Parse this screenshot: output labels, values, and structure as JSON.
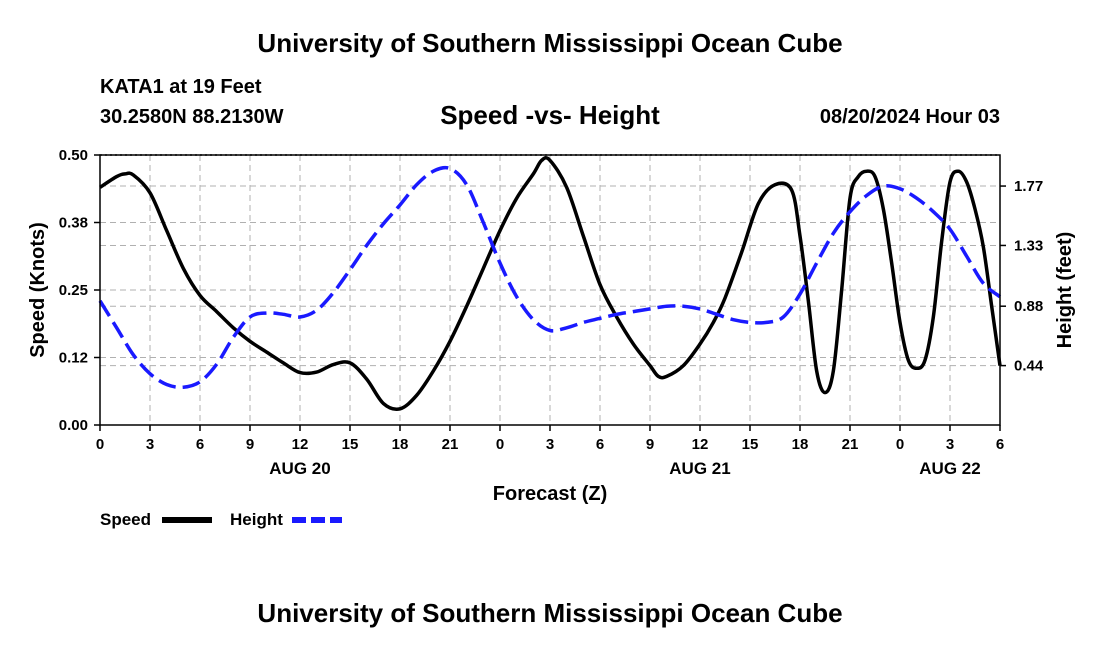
{
  "header": {
    "title": "University of Southern Mississippi Ocean Cube",
    "station": "KATA1 at 19 Feet",
    "coords": "30.2580N  88.2130W",
    "datetime": "08/20/2024 Hour 03",
    "footer_title": "University of Southern Mississippi Ocean Cube"
  },
  "chart_data": {
    "type": "line",
    "title": "Speed -vs- Height",
    "xlabel": "Forecast (Z)",
    "ylabel": "Speed (Knots)",
    "y2label": "Height (feet)",
    "x_range": [
      0,
      54
    ],
    "x_ticks": [
      0,
      3,
      6,
      9,
      12,
      15,
      18,
      21,
      24,
      27,
      30,
      33,
      36,
      39,
      42,
      45,
      48,
      51,
      54
    ],
    "x_tick_labels": [
      "0",
      "3",
      "6",
      "9",
      "12",
      "15",
      "18",
      "21",
      "0",
      "3",
      "6",
      "9",
      "12",
      "15",
      "18",
      "21",
      "0",
      "3",
      "6"
    ],
    "date_labels": [
      {
        "label": "AUG 20",
        "x": 12
      },
      {
        "label": "AUG 21",
        "x": 36
      },
      {
        "label": "AUG 22",
        "x": 51
      }
    ],
    "ylim": [
      0,
      0.5
    ],
    "y_ticks": [
      0,
      0.125,
      0.25,
      0.375,
      0.5
    ],
    "y_tick_labels": [
      "0.00",
      "0.12",
      "0.25",
      "0.38",
      "0.50"
    ],
    "y2lim": [
      0,
      2.0
    ],
    "y2_ticks": [
      0.44,
      0.88,
      1.33,
      1.77
    ],
    "y2_tick_labels": [
      "0.44",
      "0.88",
      "1.33",
      "1.77"
    ],
    "grid": true,
    "legend": [
      {
        "name": "Speed",
        "color": "#000000",
        "dash": "solid"
      },
      {
        "name": "Height",
        "color": "#1a1aff",
        "dash": "dashed"
      }
    ],
    "series": [
      {
        "name": "Speed",
        "axis": "left",
        "color": "#000000",
        "x": [
          0,
          1,
          1.5,
          2,
          3,
          4,
          5,
          6,
          7,
          8,
          9,
          10,
          11,
          12,
          13,
          14,
          15,
          16,
          17,
          18,
          19,
          20,
          21,
          22,
          23,
          24,
          25,
          26,
          26.5,
          27,
          28,
          29,
          30,
          31,
          32,
          33,
          33.5,
          34,
          35,
          36,
          36.8,
          37.5,
          38.5,
          39.5,
          40.5,
          41.5,
          42,
          42.5,
          43,
          43.5,
          44,
          44.5,
          45,
          45.5,
          46,
          46.5,
          47,
          47.5,
          48,
          48.5,
          49,
          49.5,
          50,
          50.5,
          51,
          51.5,
          52,
          52.5,
          53,
          53.5,
          54
        ],
        "y": [
          0.44,
          0.46,
          0.465,
          0.463,
          0.43,
          0.36,
          0.29,
          0.24,
          0.21,
          0.18,
          0.155,
          0.135,
          0.115,
          0.097,
          0.098,
          0.112,
          0.115,
          0.085,
          0.04,
          0.03,
          0.055,
          0.1,
          0.155,
          0.22,
          0.29,
          0.36,
          0.42,
          0.465,
          0.49,
          0.49,
          0.44,
          0.35,
          0.26,
          0.2,
          0.15,
          0.11,
          0.09,
          0.09,
          0.11,
          0.15,
          0.19,
          0.235,
          0.32,
          0.41,
          0.445,
          0.435,
          0.35,
          0.23,
          0.1,
          0.06,
          0.1,
          0.25,
          0.42,
          0.46,
          0.47,
          0.46,
          0.4,
          0.3,
          0.19,
          0.12,
          0.105,
          0.12,
          0.2,
          0.34,
          0.45,
          0.47,
          0.45,
          0.4,
          0.33,
          0.22,
          0.11
        ]
      },
      {
        "name": "Height",
        "axis": "right",
        "color": "#1a1aff",
        "x": [
          0,
          1,
          2,
          3,
          4,
          5,
          6,
          7,
          8,
          9,
          10,
          11,
          12,
          13,
          14,
          15,
          16,
          17,
          18,
          19,
          20,
          21,
          22,
          23,
          24,
          25,
          26,
          27,
          28,
          29,
          30,
          31,
          32,
          33,
          34,
          35,
          36,
          37,
          38,
          39,
          40,
          41,
          42,
          43,
          44,
          45,
          46,
          47,
          48,
          49,
          50,
          51,
          52,
          53,
          54
        ],
        "y": [
          0.92,
          0.72,
          0.52,
          0.38,
          0.3,
          0.28,
          0.32,
          0.45,
          0.65,
          0.8,
          0.83,
          0.82,
          0.8,
          0.85,
          0.98,
          1.15,
          1.33,
          1.49,
          1.63,
          1.78,
          1.88,
          1.9,
          1.78,
          1.5,
          1.2,
          0.95,
          0.78,
          0.7,
          0.72,
          0.76,
          0.79,
          0.82,
          0.84,
          0.86,
          0.88,
          0.88,
          0.86,
          0.82,
          0.78,
          0.76,
          0.76,
          0.8,
          0.97,
          1.2,
          1.42,
          1.58,
          1.7,
          1.77,
          1.75,
          1.68,
          1.58,
          1.45,
          1.25,
          1.05,
          0.95
        ]
      }
    ]
  }
}
